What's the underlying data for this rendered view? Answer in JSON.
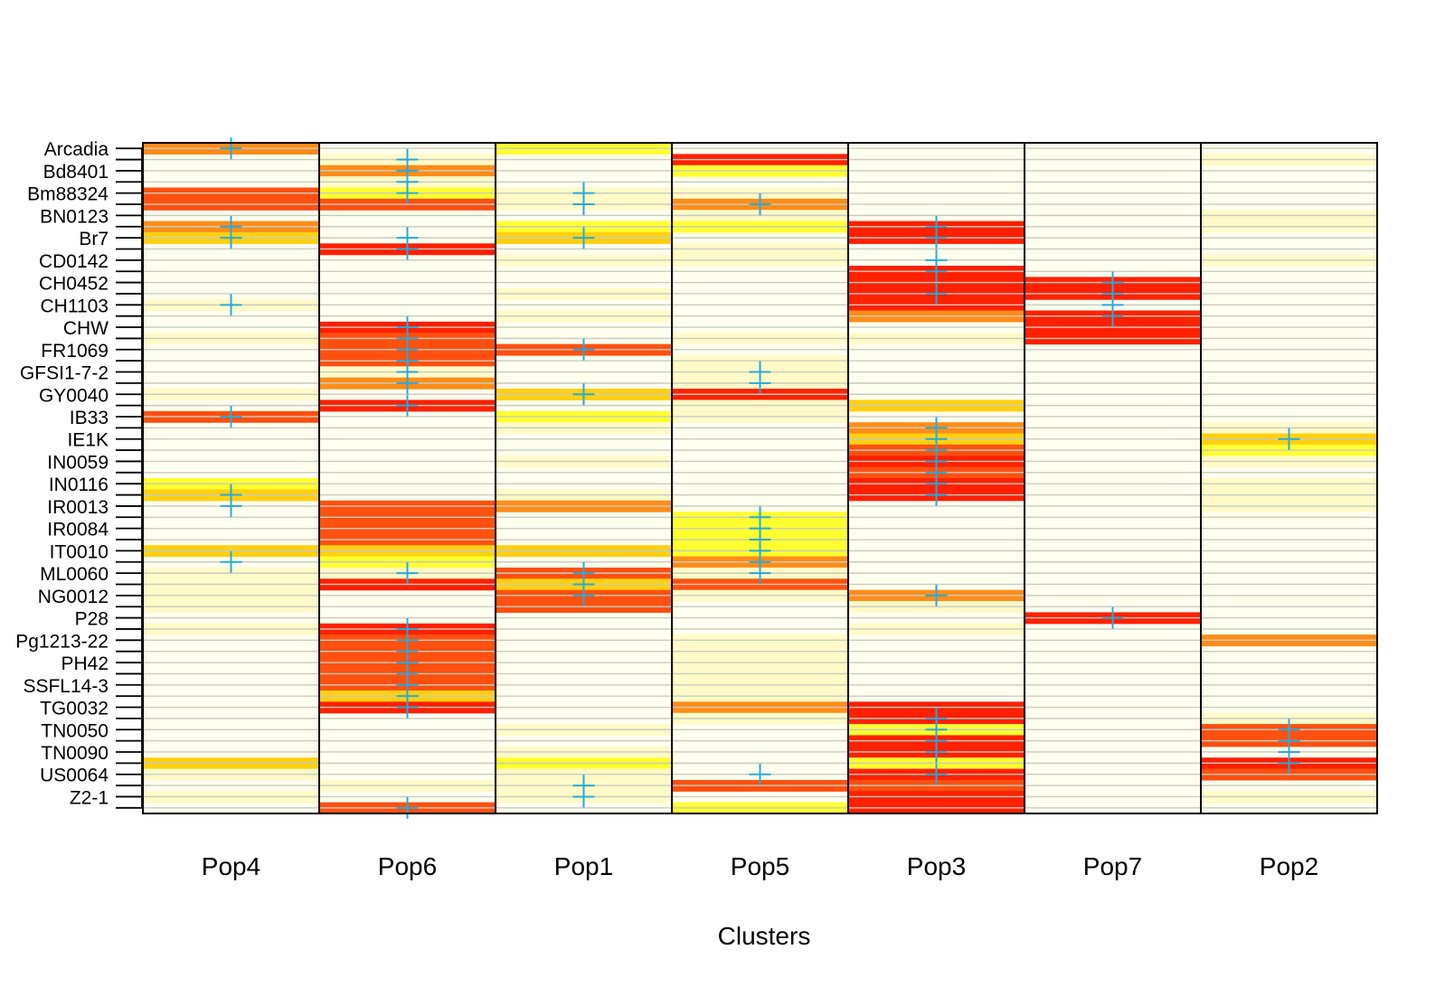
{
  "chart_data": {
    "type": "heatmap",
    "xlabel": "Clusters",
    "ylabel": "",
    "title": "",
    "columns": [
      "Pop4",
      "Pop6",
      "Pop1",
      "Pop5",
      "Pop3",
      "Pop7",
      "Pop2"
    ],
    "row_count": 59,
    "row_labels": [
      {
        "row": 0,
        "label": "Arcadia"
      },
      {
        "row": 2,
        "label": "Bd8401"
      },
      {
        "row": 4,
        "label": "Bm88324"
      },
      {
        "row": 6,
        "label": "BN0123"
      },
      {
        "row": 8,
        "label": "Br7"
      },
      {
        "row": 10,
        "label": "CD0142"
      },
      {
        "row": 12,
        "label": "CH0452"
      },
      {
        "row": 14,
        "label": "CH1103"
      },
      {
        "row": 16,
        "label": "CHW"
      },
      {
        "row": 18,
        "label": "FR1069"
      },
      {
        "row": 20,
        "label": "GFSI1-7-2"
      },
      {
        "row": 22,
        "label": "GY0040"
      },
      {
        "row": 24,
        "label": "IB33"
      },
      {
        "row": 26,
        "label": "IE1K"
      },
      {
        "row": 28,
        "label": "IN0059"
      },
      {
        "row": 30,
        "label": "IN0116"
      },
      {
        "row": 32,
        "label": "IR0013"
      },
      {
        "row": 34,
        "label": "IR0084"
      },
      {
        "row": 36,
        "label": "IT0010"
      },
      {
        "row": 38,
        "label": "ML0060"
      },
      {
        "row": 40,
        "label": "NG0012"
      },
      {
        "row": 42,
        "label": "P28"
      },
      {
        "row": 44,
        "label": "Pg1213-22"
      },
      {
        "row": 46,
        "label": "PH42"
      },
      {
        "row": 48,
        "label": "SSFL14-3"
      },
      {
        "row": 50,
        "label": "TG0032"
      },
      {
        "row": 52,
        "label": "TN0050"
      },
      {
        "row": 54,
        "label": "TN0090"
      },
      {
        "row": 56,
        "label": "US0064"
      },
      {
        "row": 58,
        "label": "Z2-1"
      }
    ],
    "color_scale": {
      "background": "#fffff0",
      "grid": "#c8ccbc",
      "levels": [
        "#fffac8",
        "#ffff30",
        "#ffd010",
        "#ff8c18",
        "#ff5010",
        "#ff2000"
      ],
      "marker": "#27a9dd"
    },
    "membership": {
      "Pop4": [
        [
          0,
          4
        ],
        [
          4,
          5
        ],
        [
          5,
          5
        ],
        [
          7,
          4
        ],
        [
          8,
          3
        ],
        [
          14,
          1
        ],
        [
          17,
          1
        ],
        [
          22,
          1
        ],
        [
          24,
          5
        ],
        [
          30,
          2
        ],
        [
          31,
          3
        ],
        [
          36,
          3
        ],
        [
          38,
          1
        ],
        [
          39,
          1
        ],
        [
          40,
          1
        ],
        [
          41,
          1
        ],
        [
          43,
          1
        ],
        [
          55,
          3
        ],
        [
          56,
          1
        ],
        [
          58,
          1
        ]
      ],
      "Pop6": [
        [
          1,
          1
        ],
        [
          2,
          4
        ],
        [
          3,
          1
        ],
        [
          4,
          2
        ],
        [
          5,
          5
        ],
        [
          9,
          6
        ],
        [
          16,
          6
        ],
        [
          17,
          5
        ],
        [
          18,
          5
        ],
        [
          19,
          5
        ],
        [
          20,
          1
        ],
        [
          21,
          4
        ],
        [
          23,
          6
        ],
        [
          32,
          5
        ],
        [
          33,
          5
        ],
        [
          34,
          5
        ],
        [
          35,
          5
        ],
        [
          36,
          3
        ],
        [
          37,
          2
        ],
        [
          38,
          1
        ],
        [
          39,
          6
        ],
        [
          43,
          6
        ],
        [
          44,
          5
        ],
        [
          45,
          5
        ],
        [
          46,
          5
        ],
        [
          47,
          5
        ],
        [
          48,
          5
        ],
        [
          49,
          3
        ],
        [
          50,
          6
        ],
        [
          57,
          1
        ],
        [
          59,
          5
        ]
      ],
      "Pop1": [
        [
          0,
          2
        ],
        [
          4,
          1
        ],
        [
          5,
          1
        ],
        [
          7,
          2
        ],
        [
          8,
          3
        ],
        [
          10,
          1
        ],
        [
          13,
          1
        ],
        [
          15,
          1
        ],
        [
          18,
          5
        ],
        [
          22,
          3
        ],
        [
          24,
          2
        ],
        [
          25,
          1
        ],
        [
          28,
          1
        ],
        [
          31,
          1
        ],
        [
          32,
          4
        ],
        [
          36,
          3
        ],
        [
          38,
          5
        ],
        [
          39,
          3
        ],
        [
          40,
          5
        ],
        [
          41,
          5
        ],
        [
          52,
          1
        ],
        [
          54,
          1
        ],
        [
          55,
          2
        ],
        [
          56,
          1
        ],
        [
          57,
          1
        ],
        [
          58,
          1
        ]
      ],
      "Pop5": [
        [
          1,
          6
        ],
        [
          2,
          2
        ],
        [
          4,
          1
        ],
        [
          5,
          4
        ],
        [
          6,
          1
        ],
        [
          7,
          2
        ],
        [
          9,
          1
        ],
        [
          10,
          1
        ],
        [
          17,
          1
        ],
        [
          19,
          1
        ],
        [
          20,
          1
        ],
        [
          21,
          1
        ],
        [
          22,
          6
        ],
        [
          23,
          1
        ],
        [
          24,
          1
        ],
        [
          33,
          2
        ],
        [
          34,
          2
        ],
        [
          35,
          2
        ],
        [
          36,
          2
        ],
        [
          37,
          4
        ],
        [
          38,
          1
        ],
        [
          39,
          5
        ],
        [
          40,
          1
        ],
        [
          44,
          1
        ],
        [
          45,
          1
        ],
        [
          46,
          1
        ],
        [
          47,
          1
        ],
        [
          48,
          1
        ],
        [
          49,
          1
        ],
        [
          50,
          4
        ],
        [
          51,
          1
        ],
        [
          57,
          5
        ],
        [
          59,
          2
        ]
      ],
      "Pop3": [
        [
          7,
          6
        ],
        [
          8,
          6
        ],
        [
          11,
          6
        ],
        [
          12,
          6
        ],
        [
          13,
          6
        ],
        [
          14,
          6
        ],
        [
          15,
          4
        ],
        [
          17,
          1
        ],
        [
          23,
          3
        ],
        [
          25,
          4
        ],
        [
          26,
          3
        ],
        [
          27,
          5
        ],
        [
          28,
          6
        ],
        [
          29,
          5
        ],
        [
          30,
          6
        ],
        [
          31,
          6
        ],
        [
          40,
          4
        ],
        [
          41,
          1
        ],
        [
          43,
          1
        ],
        [
          50,
          6
        ],
        [
          51,
          6
        ],
        [
          52,
          2
        ],
        [
          53,
          6
        ],
        [
          54,
          6
        ],
        [
          55,
          2
        ],
        [
          56,
          6
        ],
        [
          57,
          5
        ],
        [
          58,
          6
        ],
        [
          59,
          6
        ]
      ],
      "Pop7": [
        [
          12,
          6
        ],
        [
          13,
          6
        ],
        [
          15,
          6
        ],
        [
          16,
          6
        ],
        [
          17,
          6
        ],
        [
          42,
          6
        ]
      ],
      "Pop2": [
        [
          1,
          1
        ],
        [
          6,
          1
        ],
        [
          7,
          1
        ],
        [
          10,
          1
        ],
        [
          25,
          1
        ],
        [
          26,
          3
        ],
        [
          27,
          2
        ],
        [
          28,
          1
        ],
        [
          30,
          1
        ],
        [
          31,
          1
        ],
        [
          32,
          1
        ],
        [
          44,
          4
        ],
        [
          51,
          1
        ],
        [
          52,
          5
        ],
        [
          53,
          5
        ],
        [
          55,
          6
        ],
        [
          56,
          5
        ],
        [
          58,
          1
        ]
      ]
    },
    "assignments": {
      "Pop4": [
        0,
        7,
        8,
        14,
        24,
        31,
        32,
        37
      ],
      "Pop6": [
        1,
        2,
        3,
        4,
        8,
        9,
        16,
        17,
        18,
        19,
        20,
        21,
        23,
        38,
        43,
        44,
        45,
        46,
        47,
        48,
        49,
        50,
        59
      ],
      "Pop1": [
        4,
        5,
        8,
        18,
        22,
        38,
        39,
        40,
        57,
        58
      ],
      "Pop5": [
        5,
        20,
        21,
        33,
        34,
        35,
        36,
        37,
        38,
        56
      ],
      "Pop3": [
        7,
        8,
        10,
        11,
        13,
        25,
        26,
        27,
        28,
        29,
        30,
        31,
        40,
        51,
        52,
        53,
        54,
        56
      ],
      "Pop7": [
        12,
        13,
        14,
        15,
        42
      ],
      "Pop2": [
        26,
        52,
        53,
        54,
        55
      ]
    }
  }
}
